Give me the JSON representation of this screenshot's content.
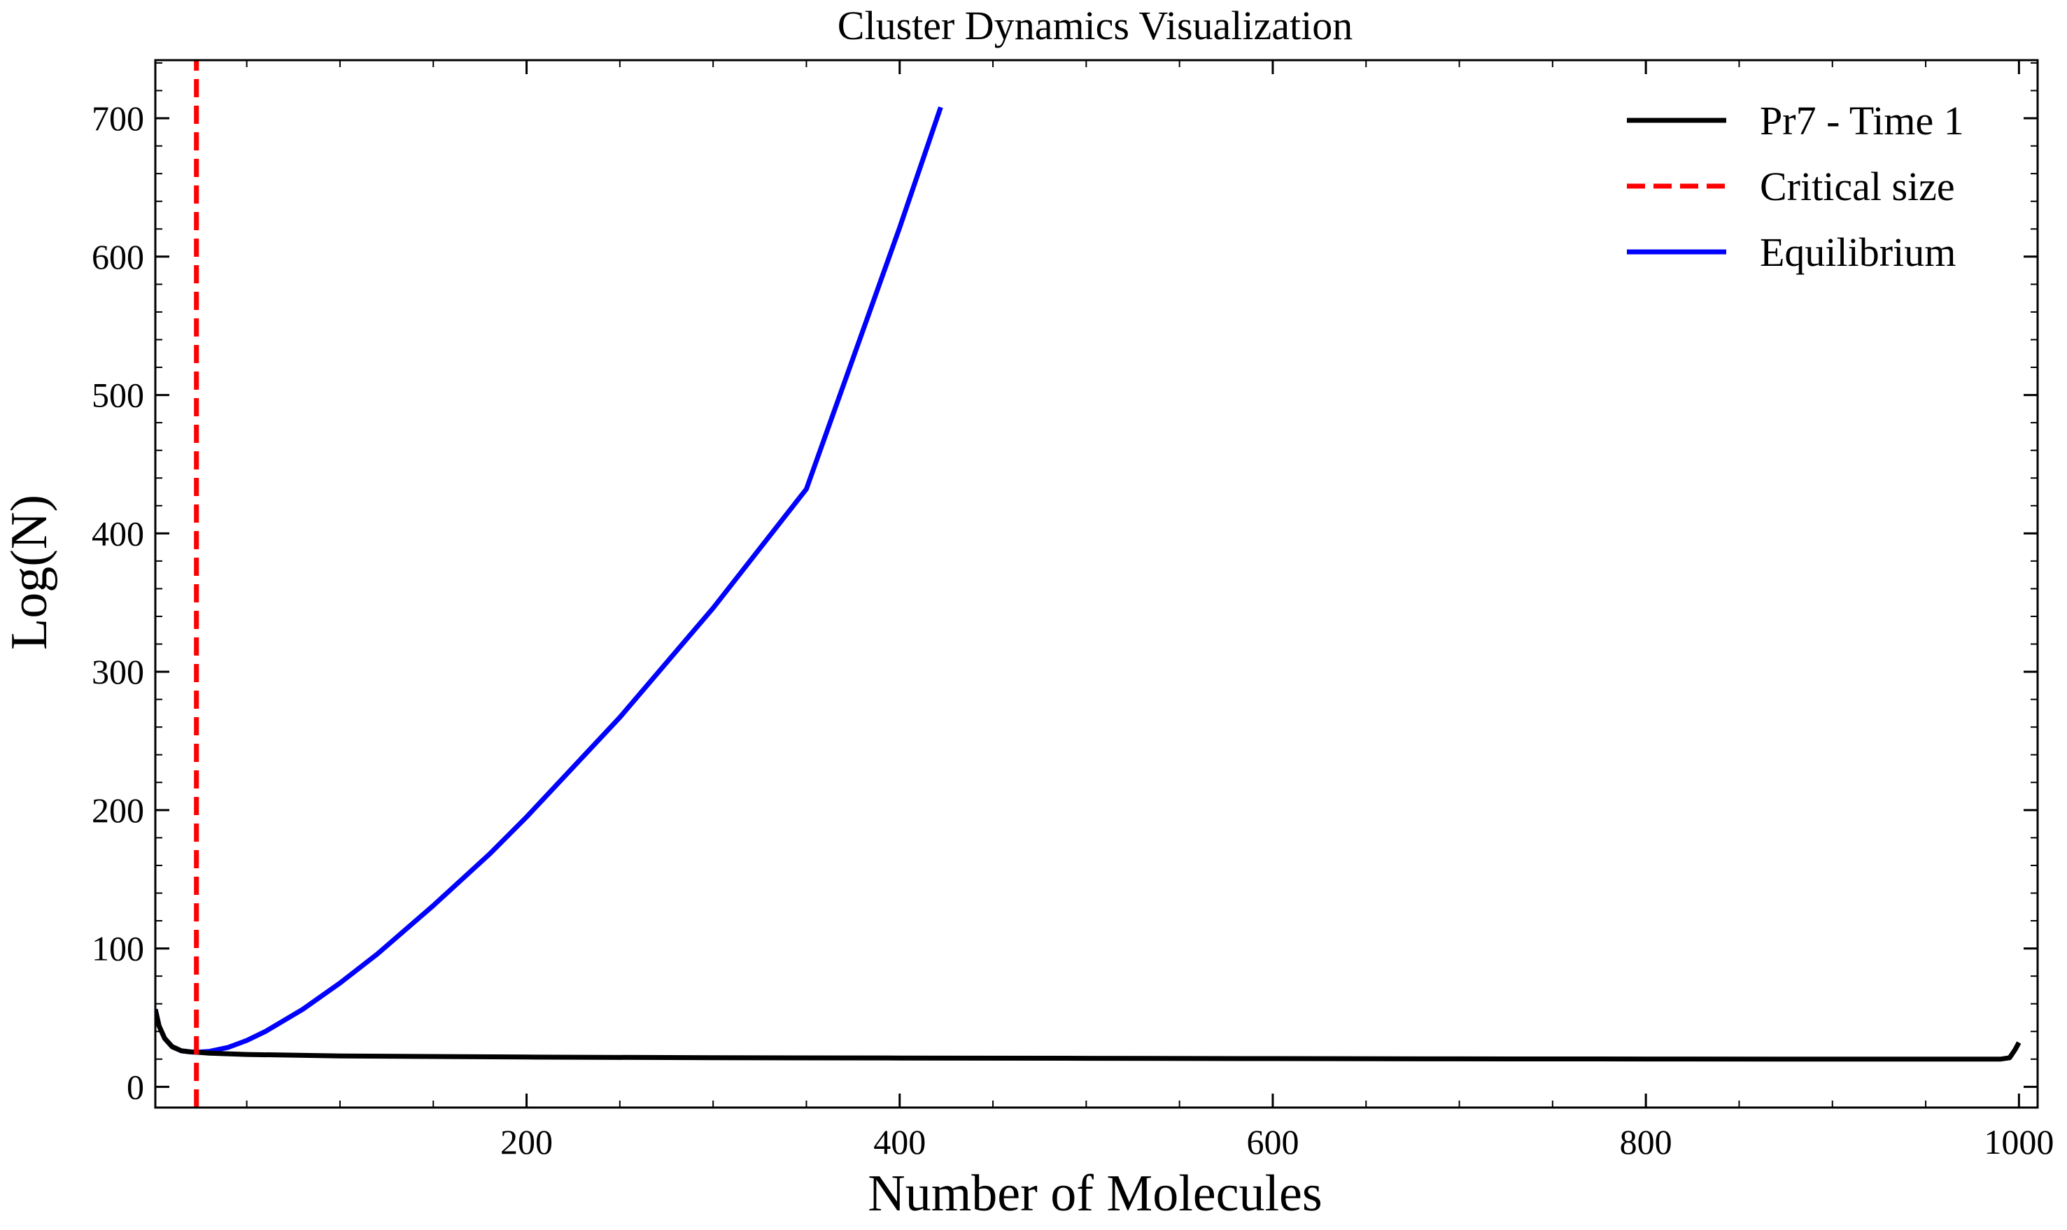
{
  "chart_data": {
    "type": "line",
    "title": "Cluster Dynamics Visualization",
    "xlabel": "Number of Molecules",
    "ylabel": "Log(N)",
    "xlim": [
      1,
      1010
    ],
    "ylim": [
      -15,
      742
    ],
    "x_ticks": [
      200,
      400,
      600,
      800,
      1000
    ],
    "y_ticks": [
      0,
      100,
      200,
      300,
      400,
      500,
      600,
      700
    ],
    "grid": false,
    "legend_position": "top-right",
    "series": [
      {
        "name": "Pr7 - Time 1",
        "color": "#000000",
        "style": "solid",
        "x": [
          1,
          3,
          6,
          10,
          15,
          20,
          23,
          30,
          50,
          100,
          200,
          300,
          400,
          500,
          600,
          700,
          800,
          900,
          990,
          995,
          998,
          1000
        ],
        "y": [
          56,
          44,
          35,
          29,
          26,
          25.2,
          25,
          24.3,
          23.4,
          22.3,
          21.5,
          21,
          20.8,
          20.6,
          20.4,
          20.2,
          20.1,
          20,
          20,
          21,
          27,
          32
        ]
      },
      {
        "name": "Critical size",
        "color": "#ff0000",
        "style": "dashed",
        "x": [
          23,
          23
        ],
        "y": [
          -15,
          742
        ]
      },
      {
        "name": "Equilibrium",
        "color": "#0000ff",
        "style": "solid",
        "x": [
          1,
          3,
          6,
          10,
          15,
          20,
          23,
          30,
          40,
          50,
          60,
          80,
          100,
          120,
          150,
          180,
          200,
          250,
          300,
          350,
          400,
          422
        ],
        "y": [
          56,
          44,
          35,
          29,
          26,
          25.2,
          25,
          25.6,
          28.5,
          33.5,
          40,
          56,
          75,
          96,
          131,
          168,
          195,
          267,
          346,
          432,
          621,
          708
        ]
      }
    ]
  }
}
